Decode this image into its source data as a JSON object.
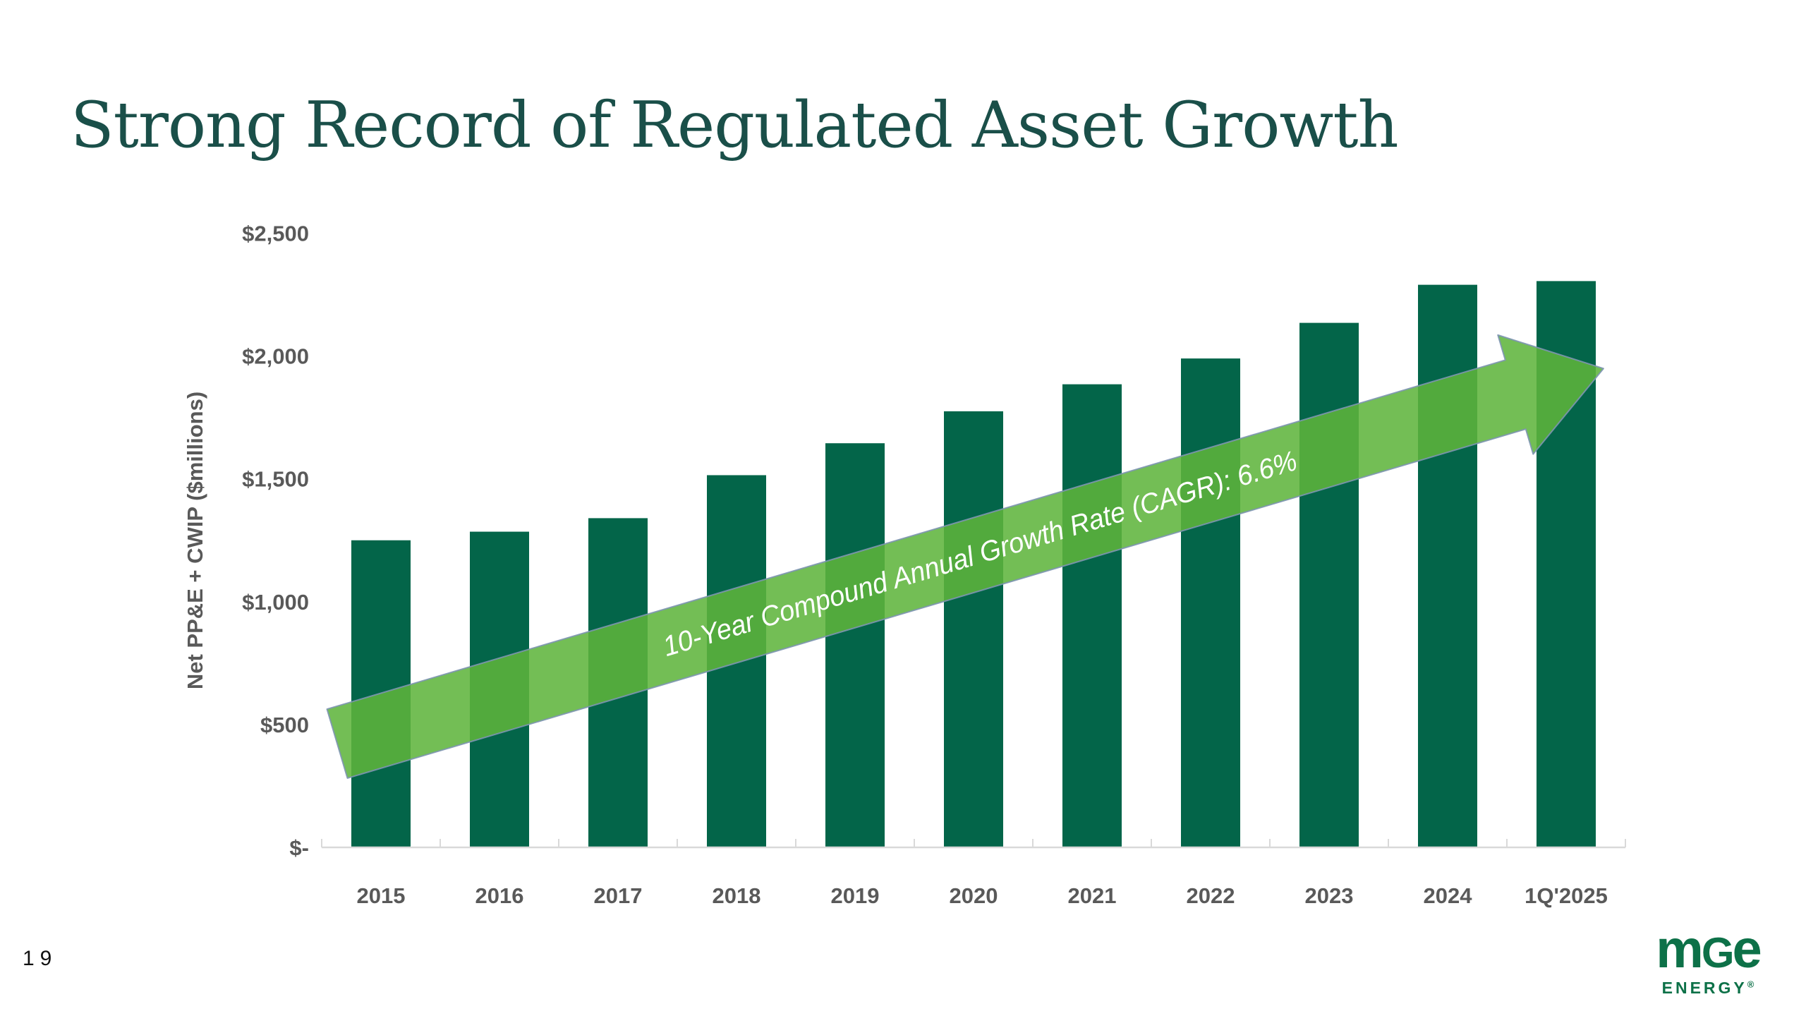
{
  "slide": {
    "title": "Strong Record of Regulated Asset Growth",
    "page_number": "19",
    "logo": {
      "brand_m": "m",
      "brand_g": "G",
      "brand_e": "e",
      "sub": "ENERGY",
      "registered": "®"
    }
  },
  "chart_data": {
    "type": "bar",
    "title": "Strong Record of Regulated Asset Growth",
    "categories": [
      "2015",
      "2016",
      "2017",
      "2018",
      "2019",
      "2020",
      "2021",
      "2022",
      "2023",
      "2024",
      "1Q'2025"
    ],
    "values": [
      1250,
      1285,
      1340,
      1515,
      1645,
      1775,
      1885,
      1990,
      2135,
      2290,
      2305
    ],
    "xlabel": "",
    "ylabel": "Net PP&E + CWIP ($millions)",
    "ylim": [
      0,
      2500
    ],
    "ytick_interval": 500,
    "ytick_labels": [
      "$-",
      "$500",
      "$1,000",
      "$1,500",
      "$2,000",
      "$2,500"
    ],
    "grid": false,
    "legend_position": "none",
    "bar_color": "#036549",
    "axis_line_color": "#d9d9d9",
    "axis_text_color": "#595959",
    "annotation": {
      "text": "10-Year Compound Annual Growth Rate (CAGR): 6.6%",
      "shape": "upward-arrow",
      "fill_color": "#5eb43c",
      "outline_color": "#7d95b0",
      "text_color": "#ffffff"
    }
  }
}
